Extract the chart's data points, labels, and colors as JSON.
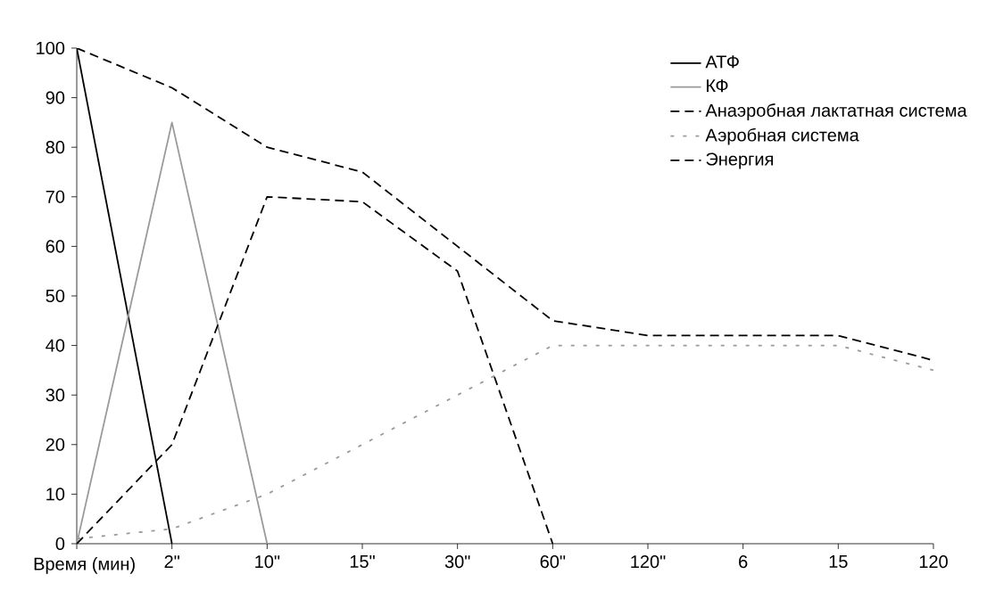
{
  "chart_data": {
    "type": "line",
    "xlabel": "Время (мин)",
    "categories": [
      null,
      "2\"",
      "10\"",
      "15\"",
      "30\"",
      "60\"",
      "120\"",
      "6",
      "15",
      "120"
    ],
    "ylim": [
      0,
      100
    ],
    "yticks": [
      0,
      10,
      20,
      30,
      40,
      50,
      60,
      70,
      80,
      90,
      100
    ],
    "grid": false,
    "legend": "top right",
    "marker": "none",
    "series": [
      {
        "name": "АТФ",
        "color": "#000000",
        "line_style": "solid",
        "values": [
          100,
          0,
          null,
          null,
          null,
          null,
          null,
          null,
          null,
          null
        ]
      },
      {
        "name": "КФ",
        "color": "#9a9a9a",
        "line_style": "solid",
        "values": [
          0,
          85,
          0,
          null,
          null,
          null,
          null,
          null,
          null,
          null
        ]
      },
      {
        "name": "Анаэробная лактатная система",
        "color": "#000000",
        "line_style": "dashed",
        "values": [
          0,
          20,
          70,
          69,
          55,
          0,
          null,
          null,
          null,
          null
        ]
      },
      {
        "name": "Аэробная система",
        "color": "#9a9a9a",
        "line_style": "dotted",
        "values": [
          1,
          3,
          10,
          20,
          30,
          40,
          40,
          40,
          40,
          35
        ]
      },
      {
        "name": "Энергия",
        "color": "#000000",
        "line_style": "dashed",
        "values": [
          100,
          92,
          80,
          75,
          60,
          45,
          42,
          42,
          42,
          37
        ]
      }
    ]
  }
}
